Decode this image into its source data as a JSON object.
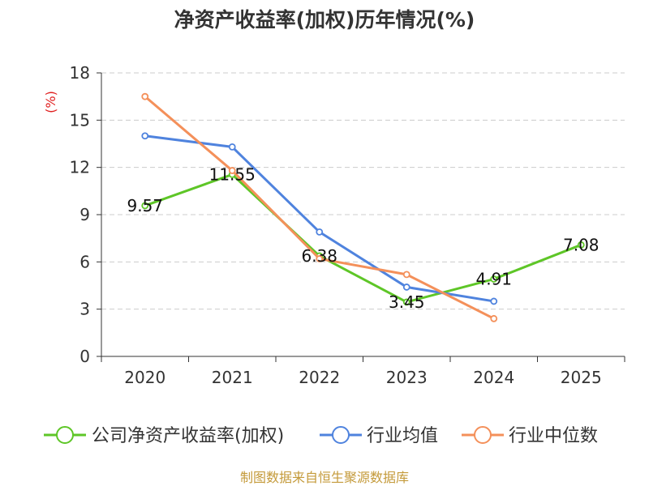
{
  "chart_data": {
    "type": "line",
    "title": "净资产收益率(加权)历年情况(%)",
    "ylabel": "(%)",
    "xlabel": "",
    "categories": [
      "2020",
      "2021",
      "2022",
      "2023",
      "2024",
      "2025"
    ],
    "ylim": [
      0,
      18
    ],
    "yticks": [
      0,
      3,
      6,
      9,
      12,
      15,
      18
    ],
    "grid": true,
    "legend_position": "bottom",
    "series": [
      {
        "name": "公司净资产收益率(加权)",
        "color": "#5ec627",
        "values": [
          9.57,
          11.55,
          6.38,
          3.45,
          4.91,
          7.08
        ],
        "labels": [
          "9.57",
          "11.55",
          "6.38",
          "3.45",
          "4.91",
          "7.08"
        ]
      },
      {
        "name": "行业均值",
        "color": "#4f83de",
        "values": [
          14.0,
          13.3,
          7.9,
          4.4,
          3.5,
          null
        ]
      },
      {
        "name": "行业中位数",
        "color": "#f4905a",
        "values": [
          16.5,
          11.8,
          6.2,
          5.2,
          2.4,
          null
        ]
      }
    ]
  },
  "source": "制图数据来自恒生聚源数据库"
}
